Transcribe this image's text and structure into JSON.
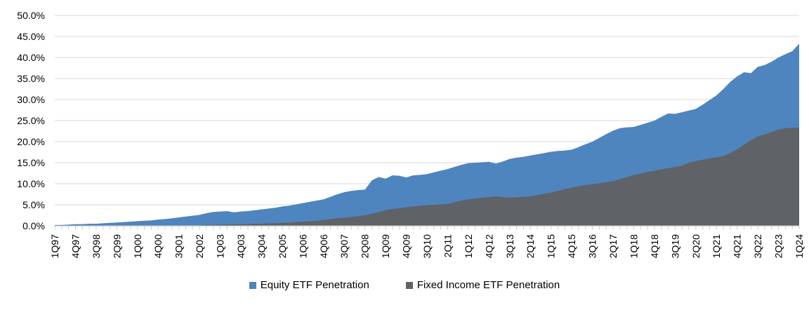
{
  "chart_data": {
    "type": "area",
    "title": "",
    "xlabel": "",
    "ylabel": "",
    "ylim": [
      0,
      50
    ],
    "y_tick_step_pct": 5,
    "y_tick_labels": [
      "50.0%",
      "45.0%",
      "40.0%",
      "35.0%",
      "30.0%",
      "25.0%",
      "20.0%",
      "15.0%",
      "10.0%",
      "5.0%",
      "0.0%"
    ],
    "x_start": "1Q97",
    "x_end": "1Q24",
    "x_quarters_total": 109,
    "x_tick_label_every_n_quarters": 3,
    "x_tick_labels": [
      "1Q97",
      "4Q97",
      "3Q98",
      "2Q99",
      "1Q00",
      "4Q00",
      "3Q01",
      "2Q02",
      "1Q03",
      "4Q03",
      "3Q04",
      "2Q05",
      "1Q06",
      "4Q06",
      "3Q07",
      "2Q08",
      "1Q09",
      "4Q09",
      "3Q10",
      "2Q11",
      "1Q12",
      "4Q12",
      "3Q13",
      "2Q14",
      "1Q15",
      "4Q15",
      "3Q16",
      "2Q17",
      "1Q18",
      "4Q18",
      "3Q19",
      "2Q20",
      "1Q21",
      "4Q21",
      "3Q22",
      "2Q23",
      "1Q24"
    ],
    "grid": true,
    "legend_position": "bottom",
    "series": [
      {
        "name": "Equity ETF Penetration",
        "color": "#4E85BF",
        "values": [
          0.2,
          0.2,
          0.3,
          0.4,
          0.4,
          0.5,
          0.5,
          0.6,
          0.7,
          0.8,
          0.9,
          1.0,
          1.1,
          1.2,
          1.3,
          1.5,
          1.6,
          1.8,
          2.0,
          2.2,
          2.4,
          2.6,
          3.0,
          3.3,
          3.4,
          3.5,
          3.2,
          3.4,
          3.5,
          3.7,
          3.9,
          4.1,
          4.3,
          4.6,
          4.8,
          5.1,
          5.4,
          5.7,
          6.0,
          6.3,
          6.9,
          7.5,
          8.0,
          8.3,
          8.5,
          8.6,
          10.8,
          11.6,
          11.2,
          12.0,
          11.9,
          11.5,
          12.0,
          12.1,
          12.3,
          12.7,
          13.1,
          13.5,
          14.0,
          14.5,
          14.9,
          15.0,
          15.1,
          15.2,
          14.8,
          15.3,
          15.9,
          16.2,
          16.4,
          16.7,
          17.0,
          17.3,
          17.6,
          17.8,
          17.9,
          18.1,
          18.7,
          19.4,
          20.0,
          20.9,
          21.8,
          22.6,
          23.2,
          23.4,
          23.5,
          24.0,
          24.5,
          25.0,
          25.9,
          26.7,
          26.6,
          27.0,
          27.4,
          27.8,
          28.8,
          29.9,
          31.0,
          32.5,
          34.2,
          35.5,
          36.5,
          36.3,
          37.8,
          38.2,
          39.0,
          40.0,
          40.8,
          41.5,
          43.3
        ]
      },
      {
        "name": "Fixed Income ETF Penetration",
        "color": "#5F6266",
        "values": [
          0.0,
          0.0,
          0.0,
          0.0,
          0.0,
          0.0,
          0.0,
          0.0,
          0.0,
          0.0,
          0.0,
          0.0,
          0.0,
          0.0,
          0.0,
          0.0,
          0.0,
          0.0,
          0.0,
          0.0,
          0.0,
          0.1,
          0.2,
          0.2,
          0.3,
          0.3,
          0.4,
          0.4,
          0.4,
          0.5,
          0.5,
          0.6,
          0.6,
          0.7,
          0.8,
          0.9,
          1.0,
          1.1,
          1.2,
          1.4,
          1.6,
          1.8,
          1.9,
          2.1,
          2.3,
          2.5,
          2.9,
          3.3,
          3.7,
          4.0,
          4.2,
          4.4,
          4.6,
          4.8,
          4.9,
          5.0,
          5.1,
          5.2,
          5.6,
          6.0,
          6.3,
          6.5,
          6.7,
          6.8,
          7.0,
          6.8,
          6.7,
          6.8,
          6.9,
          7.0,
          7.3,
          7.6,
          7.9,
          8.3,
          8.7,
          9.1,
          9.4,
          9.7,
          9.9,
          10.1,
          10.4,
          10.6,
          11.1,
          11.6,
          12.1,
          12.4,
          12.8,
          13.1,
          13.4,
          13.7,
          14.0,
          14.3,
          15.0,
          15.4,
          15.7,
          16.0,
          16.3,
          16.6,
          17.3,
          18.2,
          19.3,
          20.3,
          21.3,
          21.7,
          22.3,
          22.9,
          23.2,
          23.3,
          23.4
        ]
      }
    ]
  },
  "colors": {
    "background": "#FFFFFF",
    "gridline": "#D9D9D9",
    "axis_line": "#BFBFBF",
    "tick": "#C9C9C9",
    "label_text": "#000000"
  }
}
